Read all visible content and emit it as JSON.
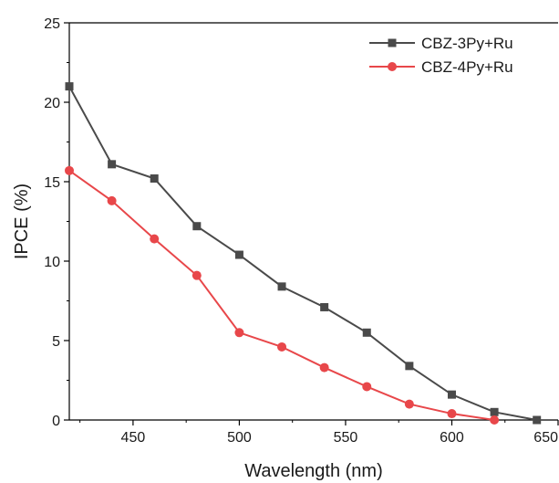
{
  "chart_data": {
    "type": "line",
    "title": "",
    "xlabel": "Wavelength (nm)",
    "ylabel": "IPCE (%)",
    "xlim": [
      420,
      650
    ],
    "ylim": [
      0,
      25
    ],
    "x_ticks": [
      450,
      500,
      550,
      600,
      650
    ],
    "x_tick_labels": [
      "450",
      "500",
      "550",
      "600",
      "650"
    ],
    "y_ticks": [
      0,
      5,
      10,
      15,
      20,
      25
    ],
    "y_tick_labels": [
      "0",
      "5",
      "10",
      "15",
      "20",
      "25"
    ],
    "grid": false,
    "legend_position": "top-right",
    "series": [
      {
        "name": "CBZ-3Py+Ru",
        "color": "#4a4a4a",
        "marker": "square",
        "x": [
          420,
          440,
          460,
          480,
          500,
          520,
          540,
          560,
          580,
          600,
          620,
          640
        ],
        "y": [
          21.0,
          16.1,
          15.2,
          12.2,
          10.4,
          8.4,
          7.1,
          5.5,
          3.4,
          1.6,
          0.5,
          0.0
        ]
      },
      {
        "name": "CBZ-4Py+Ru",
        "color": "#e8474a",
        "marker": "circle",
        "x": [
          420,
          440,
          460,
          480,
          500,
          520,
          540,
          560,
          580,
          600,
          620
        ],
        "y": [
          15.7,
          13.8,
          11.4,
          9.1,
          5.5,
          4.6,
          3.3,
          2.1,
          1.0,
          0.4,
          0.0
        ]
      }
    ]
  }
}
